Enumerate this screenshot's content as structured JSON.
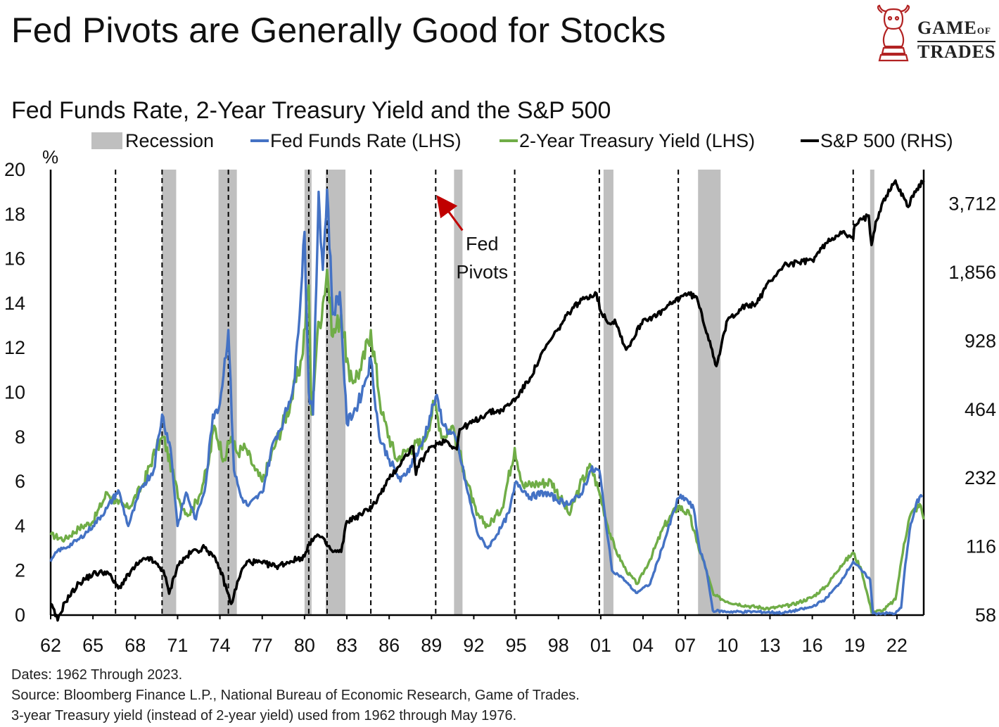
{
  "title": "Fed Pivots are Generally Good for Stocks",
  "logo": {
    "line1": "GAME",
    "line1_small": "OF",
    "line2": "TRADES",
    "icon": "bull-knight-icon"
  },
  "chart_data": {
    "type": "line",
    "subtitle": "Fed Funds Rate, 2-Year Treasury Yield and the S&P 500",
    "legend": [
      {
        "label": "Recession",
        "kind": "rect",
        "color": "#bfbfbf"
      },
      {
        "label": "Fed Funds Rate (LHS)",
        "kind": "line",
        "color": "#4472c4"
      },
      {
        "label": "2-Year Treasury Yield (LHS)",
        "kind": "line",
        "color": "#70ad47"
      },
      {
        "label": "S&P 500 (RHS)",
        "kind": "line",
        "color": "#000000"
      }
    ],
    "y_left_label": "%",
    "y_left_range": [
      0,
      20
    ],
    "y_left_ticks": [
      0,
      2,
      4,
      6,
      8,
      10,
      12,
      14,
      16,
      18,
      20
    ],
    "y_right_scale": "log",
    "y_right_range": [
      58,
      5250
    ],
    "y_right_ticks": [
      58,
      116,
      232,
      464,
      928,
      1856,
      3712
    ],
    "y_right_tick_labels": [
      "58",
      "116",
      "232",
      "464",
      "928",
      "1,856",
      "3,712"
    ],
    "x_range": [
      1962,
      2023.9
    ],
    "x_ticks": [
      1962,
      1965,
      1968,
      1971,
      1974,
      1977,
      1980,
      1983,
      1986,
      1989,
      1992,
      1995,
      1998,
      2001,
      2004,
      2007,
      2010,
      2013,
      2016,
      2019,
      2022
    ],
    "x_tick_labels": [
      "62",
      "65",
      "68",
      "71",
      "74",
      "77",
      "80",
      "83",
      "86",
      "89",
      "92",
      "95",
      "98",
      "01",
      "04",
      "07",
      "10",
      "13",
      "16",
      "19",
      "22"
    ],
    "recessions": [
      [
        1969.9,
        1970.9
      ],
      [
        1973.9,
        1975.2
      ],
      [
        1980.0,
        1980.5
      ],
      [
        1981.5,
        1982.9
      ],
      [
        1990.6,
        1991.2
      ],
      [
        2001.2,
        2001.9
      ],
      [
        2007.9,
        2009.5
      ],
      [
        2020.1,
        2020.4
      ]
    ],
    "fed_pivots": [
      1966.6,
      1969.9,
      1974.6,
      1980.3,
      1981.6,
      1984.7,
      1989.3,
      1994.9,
      2000.9,
      2006.5,
      2018.9
    ],
    "annotation": {
      "text_line1": "Fed",
      "text_line2": "Pivots",
      "x": 1989.3,
      "y_pct": 18.6,
      "color": "#c00000"
    },
    "fed_funds": {
      "name": "Fed Funds Rate (LHS)",
      "x": [
        1962,
        1962.5,
        1963,
        1964,
        1965,
        1966,
        1966.8,
        1967.5,
        1968.5,
        1969.3,
        1969.9,
        1970.5,
        1971.0,
        1971.6,
        1972.3,
        1973.0,
        1973.5,
        1974.0,
        1974.6,
        1975.0,
        1975.5,
        1976.0,
        1977.0,
        1977.8,
        1978.5,
        1979.3,
        1980.0,
        1980.3,
        1980.6,
        1981.0,
        1981.3,
        1981.6,
        1982.0,
        1982.5,
        1983.0,
        1983.8,
        1984.3,
        1984.7,
        1985.3,
        1986.0,
        1986.8,
        1987.5,
        1988.3,
        1989.3,
        1989.9,
        1990.8,
        1991.5,
        1992.3,
        1993.0,
        1994.0,
        1994.5,
        1995.0,
        1996.0,
        1997.0,
        1998.5,
        1999.5,
        2000.3,
        2000.9,
        2001.3,
        2001.8,
        2002.5,
        2003.5,
        2004.5,
        2005.5,
        2006.5,
        2007.0,
        2007.6,
        2008.0,
        2008.5,
        2008.95,
        2010,
        2012,
        2014,
        2015.9,
        2016.9,
        2017.9,
        2018.9,
        2019.5,
        2020.1,
        2020.3,
        2021,
        2021.9,
        2022.3,
        2022.6,
        2022.9,
        2023.3,
        2023.6,
        2023.8
      ],
      "values": [
        2.4,
        2.9,
        3.0,
        3.4,
        4.0,
        4.8,
        5.6,
        4.0,
        5.8,
        6.5,
        9.0,
        7.5,
        4.0,
        5.5,
        4.3,
        5.9,
        9.0,
        9.5,
        12.8,
        6.5,
        5.3,
        4.9,
        5.5,
        7.8,
        8.7,
        10.5,
        17.2,
        10.0,
        9.0,
        19.0,
        15.5,
        19.1,
        13.5,
        14.5,
        8.6,
        9.5,
        10.5,
        11.5,
        8.0,
        7.0,
        6.0,
        6.7,
        7.6,
        9.8,
        8.5,
        7.8,
        5.7,
        3.6,
        3.0,
        4.0,
        4.6,
        6.0,
        5.3,
        5.5,
        5.0,
        5.3,
        6.5,
        6.5,
        4.5,
        2.0,
        1.7,
        1.0,
        1.4,
        3.3,
        5.25,
        5.25,
        4.75,
        3.0,
        2.0,
        0.2,
        0.15,
        0.15,
        0.1,
        0.35,
        0.7,
        1.4,
        2.4,
        2.0,
        1.6,
        0.08,
        0.08,
        0.08,
        0.33,
        2.3,
        3.8,
        4.8,
        5.3,
        5.3
      ],
      "color": "#4472c4"
    },
    "two_year": {
      "name": "2-Year Treasury Yield (LHS)",
      "x": [
        1962,
        1963,
        1964,
        1965,
        1966,
        1966.8,
        1967.5,
        1968.5,
        1969.5,
        1970.0,
        1970.6,
        1971.2,
        1971.8,
        1972.5,
        1973.2,
        1973.6,
        1974.3,
        1974.8,
        1975.2,
        1975.8,
        1976.5,
        1977.0,
        1978.0,
        1979.0,
        1979.8,
        1980.3,
        1980.5,
        1980.9,
        1981.3,
        1981.6,
        1982.0,
        1982.6,
        1983.2,
        1984.0,
        1984.7,
        1985.5,
        1986.5,
        1987.5,
        1988.5,
        1989.2,
        1989.8,
        1990.5,
        1991.3,
        1992.2,
        1993.0,
        1994.0,
        1994.9,
        1995.5,
        1996.5,
        1997.5,
        1998.8,
        1999.5,
        2000.3,
        2000.9,
        2001.5,
        2002.0,
        2002.8,
        2003.6,
        2004.5,
        2005.5,
        2006.5,
        2007.3,
        2007.8,
        2008.4,
        2009.0,
        2010,
        2011.5,
        2013,
        2014.5,
        2016,
        2017,
        2018,
        2018.9,
        2019.5,
        2020.2,
        2021,
        2021.9,
        2022.5,
        2022.9,
        2023.3,
        2023.7,
        2023.9
      ],
      "values": [
        3.6,
        3.4,
        3.9,
        4.2,
        5.5,
        5.0,
        4.8,
        5.8,
        7.5,
        8.0,
        6.5,
        5.0,
        4.5,
        5.3,
        6.8,
        8.5,
        7.0,
        8.0,
        7.3,
        7.5,
        6.5,
        6.0,
        7.8,
        9.5,
        11.5,
        14.8,
        9.0,
        12.5,
        14.0,
        15.5,
        12.5,
        13.5,
        10.5,
        11.0,
        12.8,
        9.0,
        7.0,
        7.5,
        7.8,
        9.5,
        8.0,
        8.5,
        6.5,
        4.5,
        4.0,
        4.8,
        7.5,
        5.8,
        5.9,
        6.0,
        4.5,
        5.8,
        6.7,
        5.5,
        4.0,
        3.0,
        2.0,
        1.4,
        2.5,
        4.0,
        4.9,
        4.5,
        3.3,
        2.2,
        0.9,
        0.6,
        0.4,
        0.3,
        0.45,
        0.8,
        1.3,
        2.2,
        2.8,
        2.0,
        0.15,
        0.2,
        0.7,
        3.2,
        4.4,
        4.8,
        4.9,
        4.3
      ],
      "color": "#70ad47"
    },
    "sp500": {
      "name": "S&P 500 (RHS)",
      "x": [
        1962,
        1962.5,
        1963,
        1964,
        1965,
        1966,
        1966.8,
        1968,
        1968.9,
        1970.0,
        1970.4,
        1971,
        1972,
        1973,
        1973.5,
        1974,
        1974.8,
        1975.5,
        1976,
        1977,
        1978,
        1979,
        1980,
        1980.5,
        1981,
        1981.5,
        1982,
        1982.6,
        1983,
        1984,
        1985,
        1986,
        1987,
        1987.7,
        1987.9,
        1988,
        1989,
        1990,
        1990.8,
        1991,
        1992,
        1993,
        1994,
        1995,
        1996,
        1997,
        1998,
        1999,
        2000,
        2000.7,
        2001,
        2001.7,
        2002,
        2002.8,
        2003,
        2004,
        2005,
        2006,
        2007,
        2007.8,
        2008,
        2008.9,
        2009.2,
        2010,
        2011,
        2012,
        2013,
        2014,
        2015,
        2016,
        2017,
        2018,
        2018.9,
        2019,
        2020,
        2020.2,
        2020.5,
        2021,
        2021.9,
        2022,
        2022.8,
        2023,
        2023.9
      ],
      "values": [
        65,
        55,
        66,
        80,
        88,
        90,
        76,
        95,
        104,
        91,
        72,
        96,
        110,
        115,
        105,
        93,
        65,
        90,
        100,
        98,
        95,
        100,
        105,
        125,
        130,
        120,
        110,
        110,
        150,
        160,
        180,
        230,
        280,
        320,
        240,
        260,
        320,
        340,
        310,
        380,
        410,
        450,
        460,
        520,
        640,
        850,
        1050,
        1300,
        1450,
        1500,
        1250,
        1100,
        1150,
        850,
        880,
        1150,
        1200,
        1350,
        1500,
        1450,
        1300,
        850,
        720,
        1150,
        1300,
        1350,
        1700,
        2000,
        2050,
        2100,
        2500,
        2800,
        2600,
        3000,
        3300,
        2450,
        3100,
        3800,
        4700,
        4500,
        3600,
        3950,
        4700
      ],
      "color": "#000000"
    }
  },
  "footnotes": {
    "line1": "Dates: 1962 Through 2023.",
    "line2": "Source: Bloomberg Finance L.P., National Bureau of Economic Research, Game of Trades.",
    "line3": "3-year Treasury yield (instead of 2-year yield) used from 1962 through May 1976."
  }
}
